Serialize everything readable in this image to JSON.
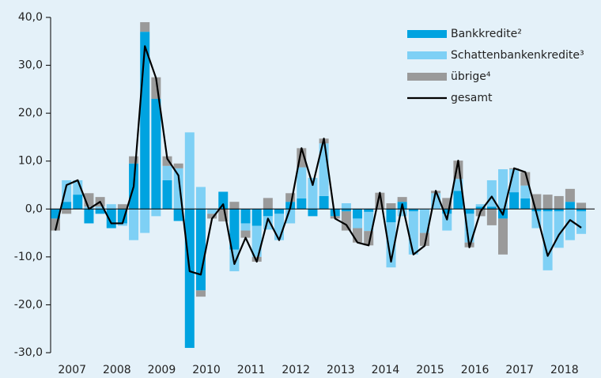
{
  "chart_data": {
    "type": "stacked_bar_line",
    "categories": [
      "2007",
      null,
      null,
      null,
      "2008",
      null,
      null,
      null,
      "2009",
      null,
      null,
      null,
      "2010",
      null,
      null,
      null,
      "2011",
      null,
      null,
      null,
      "2012",
      null,
      null,
      null,
      "2013",
      null,
      null,
      null,
      "2014",
      null,
      null,
      null,
      "2015",
      null,
      null,
      null,
      "2016",
      null,
      null,
      null,
      "2017",
      null,
      null,
      null,
      "2018",
      null,
      null,
      null
    ],
    "series": [
      {
        "name": "Bankkredite²",
        "color": "#00a3e0",
        "kind": "bar",
        "values": [
          -2,
          1.5,
          3,
          -3,
          -1,
          -4,
          -3,
          9.5,
          37,
          23,
          6,
          -2.5,
          -29,
          -17,
          0,
          3.6,
          -8.5,
          -3,
          -3.5,
          -1.5,
          -1,
          1.5,
          2.2,
          -1.5,
          2.7,
          -1.5,
          -0.5,
          -2,
          -0.6,
          0,
          -2.8,
          1.5,
          -0.5,
          0,
          0,
          -1,
          3.8,
          -1,
          0.5,
          0.5,
          -2,
          3.5,
          2.2,
          -0.5,
          -0.5,
          -0.5,
          1.5,
          -0.5
        ]
      },
      {
        "name": "Schattenbankenkredite³",
        "color": "#7ed0f5",
        "kind": "bar",
        "values": [
          0,
          4.5,
          3,
          0.5,
          0.5,
          1,
          -0.5,
          -6.5,
          -5,
          -1.5,
          3,
          8.5,
          16,
          4.6,
          -1,
          0,
          -4.5,
          -1.5,
          -6.5,
          -2.8,
          -5.5,
          -3,
          6.5,
          6.5,
          11,
          0,
          1.2,
          -2,
          -4,
          0,
          -9.4,
          -1.5,
          -9,
          -5,
          3.3,
          -3.5,
          2.5,
          -6,
          0.5,
          5.5,
          8.3,
          4.8,
          2.7,
          -3.5,
          -12.3,
          -7.6,
          -6.5,
          -4.7
        ]
      },
      {
        "name": "übrige⁴",
        "color": "#9a9a9a",
        "kind": "bar",
        "values": [
          -2.5,
          -1,
          0,
          2.8,
          2,
          0,
          1,
          1.5,
          2,
          4.5,
          2,
          1,
          0,
          -1.3,
          -1,
          -2.6,
          1.5,
          -1.5,
          -1,
          2.3,
          0,
          1.8,
          4,
          0,
          1,
          -0.5,
          -4,
          -3,
          -3,
          3.4,
          1.2,
          1,
          0,
          -2.7,
          0.5,
          2.3,
          3.8,
          -1,
          -1.5,
          -3.4,
          -7.5,
          0.2,
          2.8,
          3.1,
          3,
          2.7,
          2.7,
          1.3
        ]
      },
      {
        "name": "gesamt",
        "color": "#000000",
        "kind": "line",
        "values": [
          -4.5,
          5,
          6,
          0,
          1.5,
          -3,
          -3,
          4.7,
          34,
          27.3,
          10.5,
          7,
          -13,
          -13.7,
          -2,
          1,
          -11.5,
          -6,
          -11,
          -2,
          -6.5,
          0.3,
          12.7,
          5,
          14.7,
          -2,
          -3.3,
          -7,
          -7.6,
          3.4,
          -11,
          1,
          -9.5,
          -7.7,
          3.8,
          -2.2,
          10.1,
          -8,
          -0.5,
          2.6,
          -1.2,
          8.5,
          7.7,
          -0.9,
          -9.8,
          -5.4,
          -2.3,
          -3.9
        ]
      }
    ],
    "ylim": [
      -30,
      40
    ],
    "yticks": [
      {
        "value": -30,
        "label": "-30,0"
      },
      {
        "value": -20,
        "label": "-20,0"
      },
      {
        "value": -10,
        "label": "-10,0"
      },
      {
        "value": 0,
        "label": "0,0"
      },
      {
        "value": 10,
        "label": "10,0"
      },
      {
        "value": 20,
        "label": "20,0"
      },
      {
        "value": 30,
        "label": "30,0"
      },
      {
        "value": 40,
        "label": "40,0"
      }
    ],
    "legend": "upper right"
  }
}
